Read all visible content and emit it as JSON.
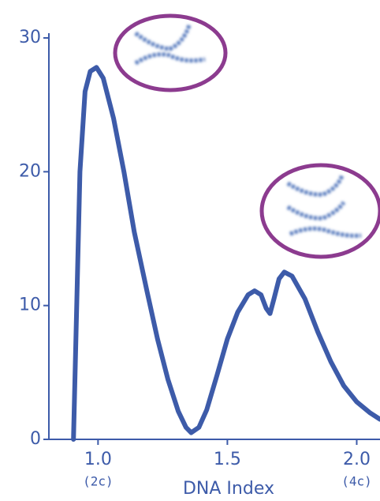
{
  "chart_data": {
    "type": "line",
    "xlabel": "DNA Index",
    "x": [
      0.905,
      0.915,
      0.93,
      0.95,
      0.97,
      0.994,
      1.02,
      1.06,
      1.1,
      1.14,
      1.19,
      1.23,
      1.27,
      1.31,
      1.34,
      1.36,
      1.39,
      1.42,
      1.46,
      1.5,
      1.54,
      1.58,
      1.605,
      1.63,
      1.65,
      1.665,
      1.68,
      1.7,
      1.72,
      1.75,
      1.8,
      1.85,
      1.9,
      1.95,
      2.0,
      2.05,
      2.09
    ],
    "values": [
      0,
      8,
      20,
      26,
      27.5,
      27.8,
      27,
      24,
      20,
      15.5,
      11,
      7.5,
      4.5,
      2.1,
      0.9,
      0.5,
      0.9,
      2.2,
      4.8,
      7.5,
      9.5,
      10.8,
      11.1,
      10.8,
      9.8,
      9.4,
      10.5,
      12,
      12.5,
      12.2,
      10.5,
      8,
      5.8,
      4,
      2.8,
      2,
      1.5
    ],
    "color": "#3d5ba9",
    "xlim": [
      0.81,
      2.09
    ],
    "ylim": [
      0,
      30
    ],
    "xticks": [
      {
        "value": 1.0,
        "label": "1.0"
      },
      {
        "value": 1.5,
        "label": "1.5"
      },
      {
        "value": 2.0,
        "label": "2.0"
      }
    ],
    "yticks": [
      0,
      10,
      20,
      30
    ],
    "x_annotations": [
      {
        "x": 1.0,
        "text": "(2c)"
      },
      {
        "x": 2.0,
        "text": "(4c)"
      }
    ],
    "grid": false
  }
}
